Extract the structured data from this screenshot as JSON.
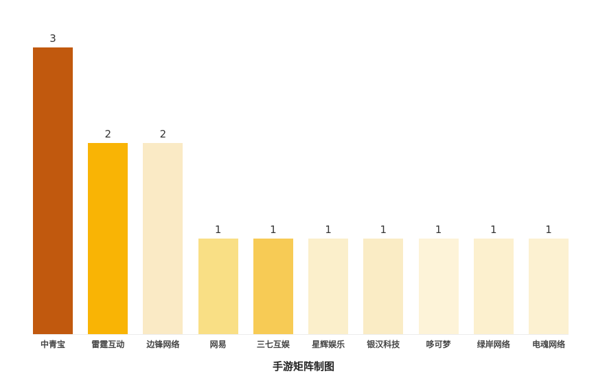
{
  "chart_data": {
    "type": "bar",
    "title": "手游矩阵制图",
    "categories": [
      "中青宝",
      "雷霆互动",
      "边锋网络",
      "网易",
      "三七互娱",
      "星辉娱乐",
      "银汉科技",
      "哆可梦",
      "绿岸网络",
      "电魂网络"
    ],
    "values": [
      3,
      2,
      2,
      1,
      1,
      1,
      1,
      1,
      1,
      1
    ],
    "value_labels": [
      "3",
      "2",
      "2",
      "1",
      "1",
      "1",
      "1",
      "1",
      "1",
      "1"
    ],
    "bar_colors": [
      "#C1590E",
      "#F9B405",
      "#FAEAC5",
      "#F9DF85",
      "#F7CB55",
      "#FBEFCB",
      "#FAECC5",
      "#FDF3D8",
      "#FCF0CE",
      "#FCF1D1"
    ],
    "xlabel": "",
    "ylabel": "",
    "ylim": [
      0,
      3.2
    ],
    "grid": false,
    "legend": false,
    "axis_line_color": "#ececec",
    "value_label_color": "#333333",
    "category_label_color": "#454545"
  }
}
